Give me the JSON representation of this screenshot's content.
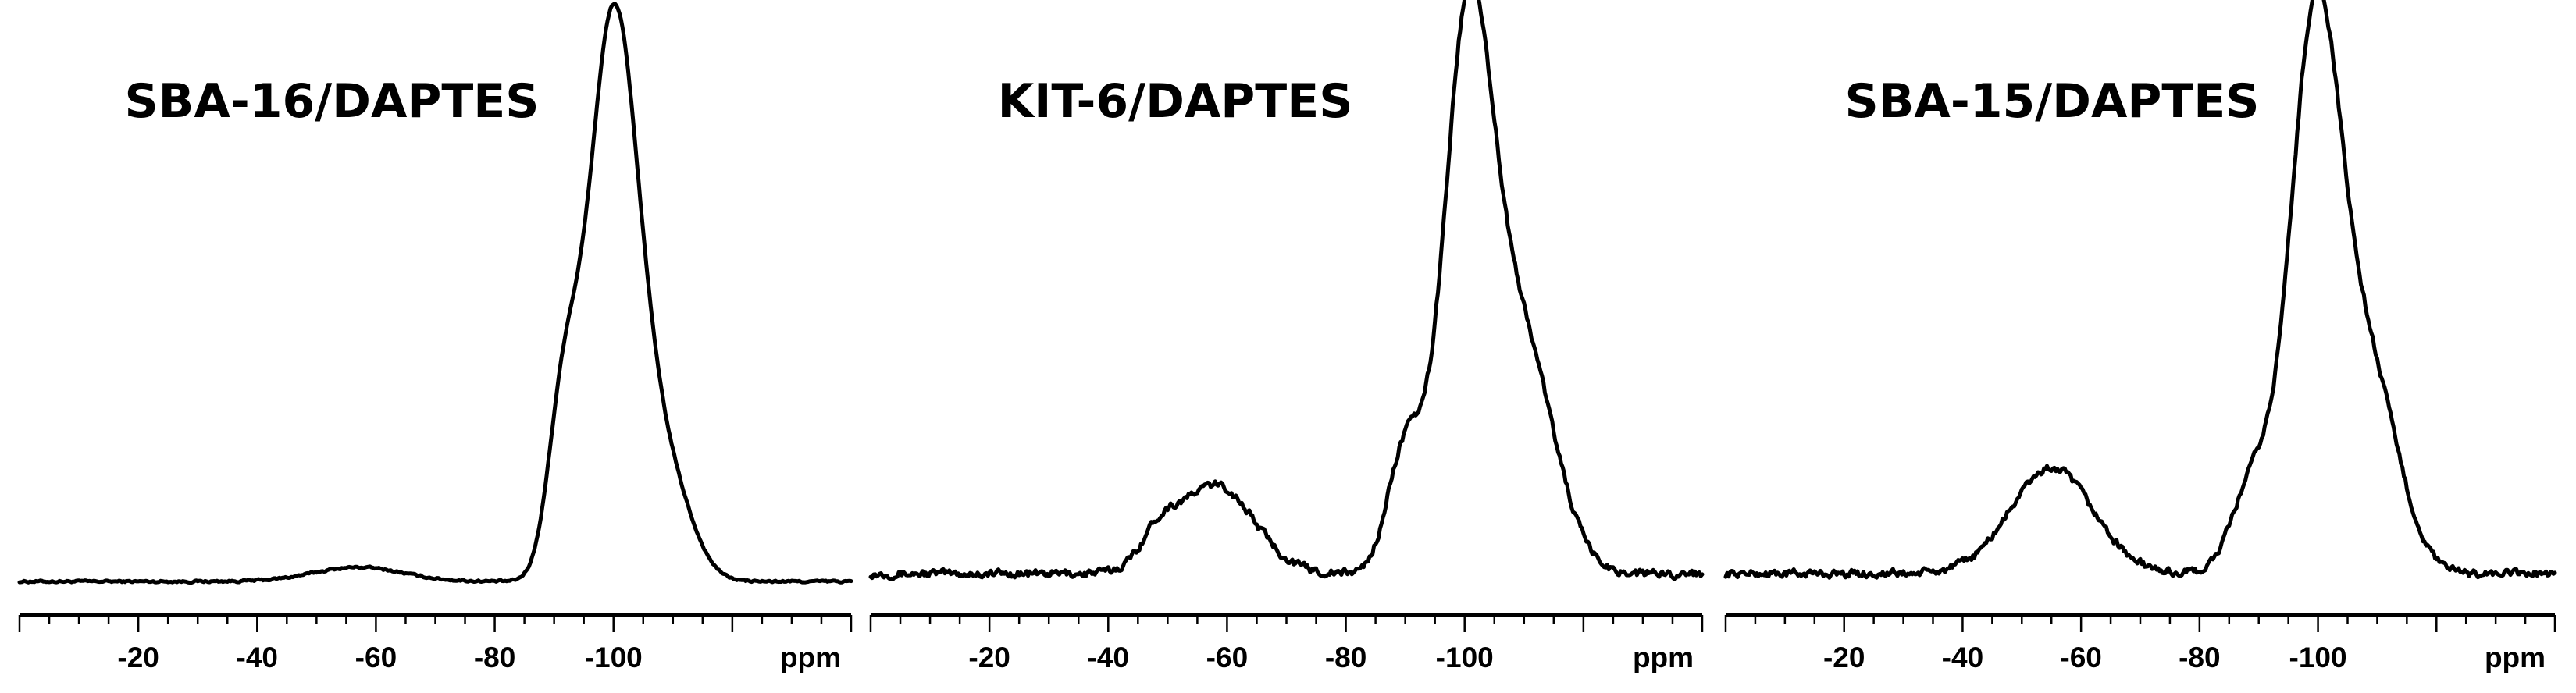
{
  "chart_data": [
    {
      "type": "line",
      "title": "SBA-16/DAPTES",
      "xlabel": "ppm",
      "xlim": [
        0,
        -140
      ],
      "x_reversed": true,
      "ticks": [
        -20,
        -40,
        -60,
        -80,
        -100
      ],
      "tick_labels": [
        "-20",
        "-40",
        "-60",
        "-80",
        "-100"
      ],
      "peaks": [
        {
          "center": -100,
          "height": 1.0,
          "width": 4.3
        },
        {
          "center": -91.5,
          "height": 0.27,
          "width": 2.6
        },
        {
          "center": -109,
          "height": 0.17,
          "width": 4.2
        },
        {
          "center": -57,
          "height": 0.025,
          "width": 7.5
        }
      ],
      "noise": 0.0015
    },
    {
      "type": "line",
      "title": "KIT-6/DAPTES",
      "xlabel": "ppm",
      "xlim": [
        0,
        -140
      ],
      "x_reversed": true,
      "ticks": [
        -20,
        -40,
        -60,
        -80,
        -100
      ],
      "tick_labels": [
        "-20",
        "-40",
        "-60",
        "-80",
        "-100"
      ],
      "peaks": [
        {
          "center": -100.5,
          "height": 0.95,
          "width": 4.1
        },
        {
          "center": -90,
          "height": 0.22,
          "width": 3.0
        },
        {
          "center": -109.5,
          "height": 0.42,
          "width": 5.5
        },
        {
          "center": -58,
          "height": 0.16,
          "width": 6.5
        },
        {
          "center": -48.5,
          "height": 0.05,
          "width": 3.0
        }
      ],
      "noise": 0.006
    },
    {
      "type": "line",
      "title": "SBA-15/DAPTES",
      "xlabel": "ppm",
      "xlim": [
        0,
        -140
      ],
      "x_reversed": true,
      "ticks": [
        -20,
        -40,
        -60,
        -80,
        -100
      ],
      "tick_labels": [
        "-20",
        "-40",
        "-60",
        "-80",
        "-100"
      ],
      "peaks": [
        {
          "center": -99.5,
          "height": 0.98,
          "width": 4.2
        },
        {
          "center": -89,
          "height": 0.16,
          "width": 3.5
        },
        {
          "center": -108.5,
          "height": 0.36,
          "width": 5.0
        },
        {
          "center": -55,
          "height": 0.19,
          "width": 7.0
        }
      ],
      "noise": 0.006
    }
  ]
}
